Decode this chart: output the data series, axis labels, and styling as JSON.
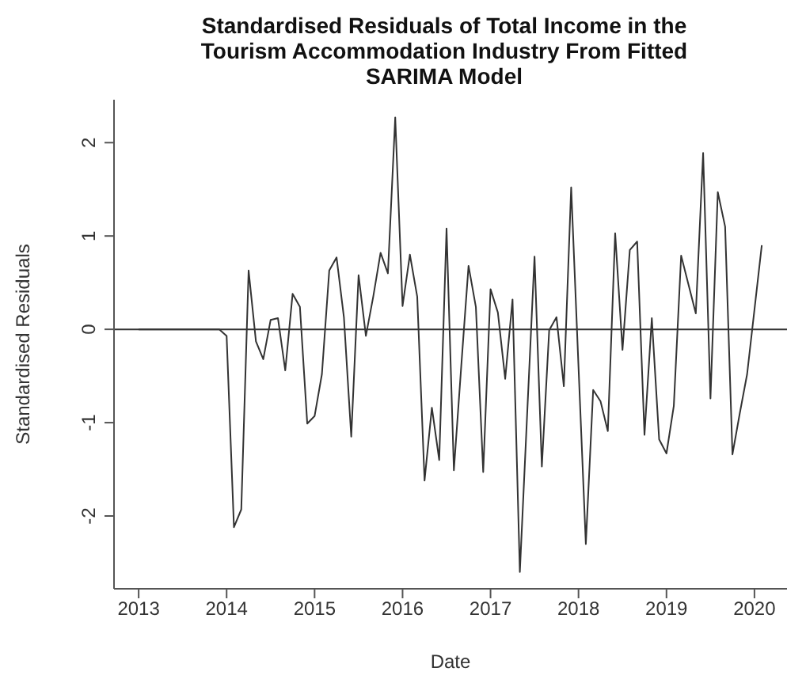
{
  "chart_data": {
    "type": "line",
    "title": "Standardised Residuals of Total Income in the Tourism Accommodation Industry From Fitted SARIMA Model",
    "xlabel": "Date",
    "ylabel": "Standardised Residuals",
    "x": [
      2013,
      2013.0833,
      2013.1667,
      2013.25,
      2013.3333,
      2013.4167,
      2013.5,
      2013.5833,
      2013.6667,
      2013.75,
      2013.8333,
      2013.9167,
      2014,
      2014.0833,
      2014.1667,
      2014.25,
      2014.3333,
      2014.4167,
      2014.5,
      2014.5833,
      2014.6667,
      2014.75,
      2014.8333,
      2014.9167,
      2015,
      2015.0833,
      2015.1667,
      2015.25,
      2015.3333,
      2015.4167,
      2015.5,
      2015.5833,
      2015.6667,
      2015.75,
      2015.8333,
      2015.9167,
      2016,
      2016.0833,
      2016.1667,
      2016.25,
      2016.3333,
      2016.4167,
      2016.5,
      2016.5833,
      2016.6667,
      2016.75,
      2016.8333,
      2016.9167,
      2017,
      2017.0833,
      2017.1667,
      2017.25,
      2017.3333,
      2017.4167,
      2017.5,
      2017.5833,
      2017.6667,
      2017.75,
      2017.8333,
      2017.9167,
      2018,
      2018.0833,
      2018.1667,
      2018.25,
      2018.3333,
      2018.4167,
      2018.5,
      2018.5833,
      2018.6667,
      2018.75,
      2018.8333,
      2018.9167,
      2019,
      2019.0833,
      2019.1667,
      2019.25,
      2019.3333,
      2019.4167,
      2019.5,
      2019.5833,
      2019.6667,
      2019.75,
      2019.8333,
      2019.9167,
      2020,
      2020.0833
    ],
    "series": [
      {
        "color": "#333333",
        "values": [
          0,
          0,
          0,
          0,
          0,
          0,
          0,
          0,
          0,
          0,
          0,
          0,
          -0.07,
          -2.12,
          -1.93,
          0.63,
          -0.13,
          -0.32,
          0.1,
          0.12,
          -0.44,
          0.38,
          0.24,
          -1.01,
          -0.93,
          -0.48,
          0.63,
          0.77,
          0.13,
          -1.15,
          0.58,
          -0.07,
          0.35,
          0.82,
          0.6,
          2.27,
          0.25,
          0.8,
          0.35,
          -1.62,
          -0.84,
          -1.4,
          1.08,
          -1.51,
          -0.4,
          0.68,
          0.24,
          -1.53,
          0.43,
          0.18,
          -0.53,
          0.32,
          -2.6,
          -0.9,
          0.78,
          -1.47,
          -0.01,
          0.13,
          -0.61,
          1.52,
          -0.4,
          -2.3,
          -0.65,
          -0.77,
          -1.09,
          1.03,
          -0.22,
          0.85,
          0.94,
          -1.13,
          0.12,
          -1.18,
          -1.33,
          -0.82,
          0.79,
          0.48,
          0.17,
          1.89,
          -0.74,
          1.47,
          1.1,
          -1.34,
          -0.9,
          -0.48,
          0.21,
          0.9
        ]
      }
    ],
    "xlim": [
      2012.72,
      2020.37
    ],
    "xticks": [
      2013,
      2014,
      2015,
      2016,
      2017,
      2018,
      2019,
      2020
    ],
    "ylim": [
      -2.78,
      2.46
    ],
    "yticks": [
      -2,
      -1,
      0,
      1,
      2
    ],
    "ref_lines": [
      {
        "axis": "y",
        "value": 0,
        "color": "#333333"
      }
    ]
  }
}
